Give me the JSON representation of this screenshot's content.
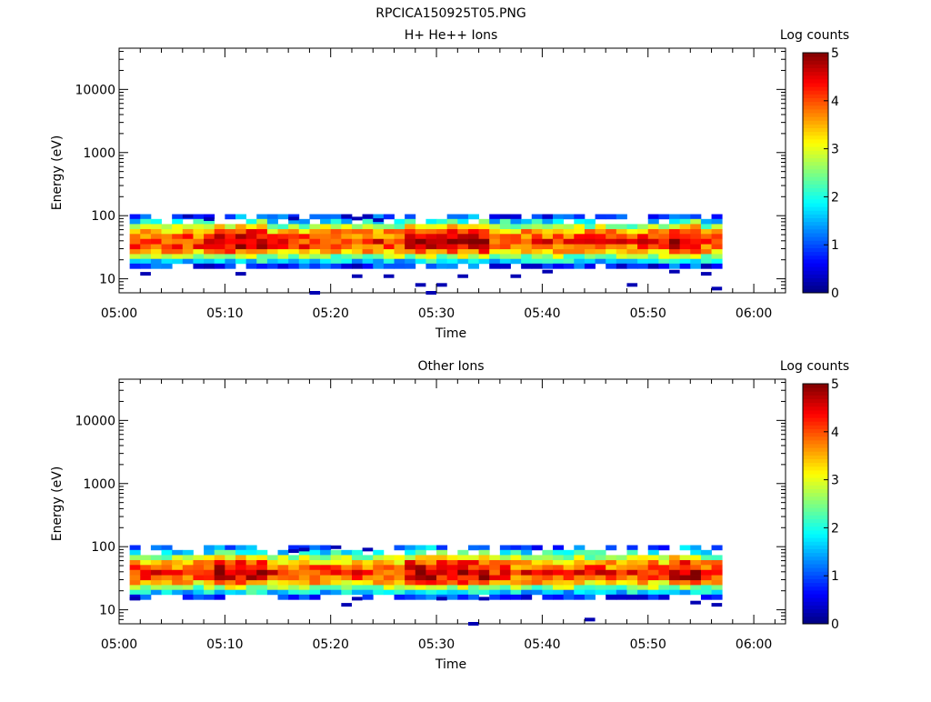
{
  "figure_title": "RPCICA150925T05.PNG",
  "chart_data": [
    {
      "type": "heatmap",
      "title": "H+ He++ Ions",
      "xlabel": "Time",
      "ylabel": "Energy (eV)",
      "x_ticks": [
        "05:00",
        "05:10",
        "05:20",
        "05:30",
        "05:40",
        "05:50",
        "06:00"
      ],
      "xlim_minutes": [
        0,
        63
      ],
      "y_scale": "log",
      "y_ticks": [
        "10",
        "100",
        "1000",
        "10000"
      ],
      "ylim": [
        6,
        45000
      ],
      "colorbar": {
        "label": "Log counts",
        "ticks": [
          "0",
          "1",
          "2",
          "3",
          "4",
          "5"
        ],
        "range": [
          0,
          5
        ],
        "colormap": "jet"
      },
      "data_time_range_minutes": [
        1,
        57
      ],
      "time_bin_minutes": 1,
      "energy_bins_eV": [
        97,
        81,
        67,
        56,
        47,
        39,
        32,
        27,
        22.5,
        19,
        16
      ],
      "sporadic_points": [
        {
          "t": 2,
          "e": 12
        },
        {
          "t": 11,
          "e": 12
        },
        {
          "t": 18,
          "e": 6
        },
        {
          "t": 22,
          "e": 11
        },
        {
          "t": 25,
          "e": 11
        },
        {
          "t": 28,
          "e": 8
        },
        {
          "t": 29,
          "e": 6
        },
        {
          "t": 30,
          "e": 8
        },
        {
          "t": 32,
          "e": 11
        },
        {
          "t": 37,
          "e": 11
        },
        {
          "t": 40,
          "e": 13
        },
        {
          "t": 48,
          "e": 8
        },
        {
          "t": 52,
          "e": 13
        },
        {
          "t": 55,
          "e": 12
        },
        {
          "t": 56,
          "e": 7
        },
        {
          "t": 21,
          "e": 98
        },
        {
          "t": 22,
          "e": 90
        },
        {
          "t": 23,
          "e": 98
        },
        {
          "t": 24,
          "e": 85
        },
        {
          "t": 16,
          "e": 90
        },
        {
          "t": 6,
          "e": 98
        },
        {
          "t": 8,
          "e": 88
        }
      ]
    },
    {
      "type": "heatmap",
      "title": "Other Ions",
      "xlabel": "Time",
      "ylabel": "Energy (eV)",
      "x_ticks": [
        "05:00",
        "05:10",
        "05:20",
        "05:30",
        "05:40",
        "05:50",
        "06:00"
      ],
      "xlim_minutes": [
        0,
        63
      ],
      "y_scale": "log",
      "y_ticks": [
        "10",
        "100",
        "1000",
        "10000"
      ],
      "ylim": [
        6,
        45000
      ],
      "colorbar": {
        "label": "Log counts",
        "ticks": [
          "0",
          "1",
          "2",
          "3",
          "4",
          "5"
        ],
        "range": [
          0,
          5
        ],
        "colormap": "jet"
      },
      "data_time_range_minutes": [
        1,
        57
      ],
      "time_bin_minutes": 1,
      "energy_bins_eV": [
        97,
        81,
        67,
        56,
        47,
        39,
        32,
        27,
        22.5,
        19,
        16
      ],
      "sporadic_points": [
        {
          "t": 1,
          "e": 15
        },
        {
          "t": 21,
          "e": 12
        },
        {
          "t": 22,
          "e": 15
        },
        {
          "t": 33,
          "e": 6
        },
        {
          "t": 44,
          "e": 7
        },
        {
          "t": 54,
          "e": 13
        },
        {
          "t": 56,
          "e": 12
        },
        {
          "t": 16,
          "e": 85
        },
        {
          "t": 17,
          "e": 90
        },
        {
          "t": 20,
          "e": 98
        },
        {
          "t": 23,
          "e": 90
        },
        {
          "t": 30,
          "e": 15
        },
        {
          "t": 34,
          "e": 15
        }
      ]
    }
  ]
}
